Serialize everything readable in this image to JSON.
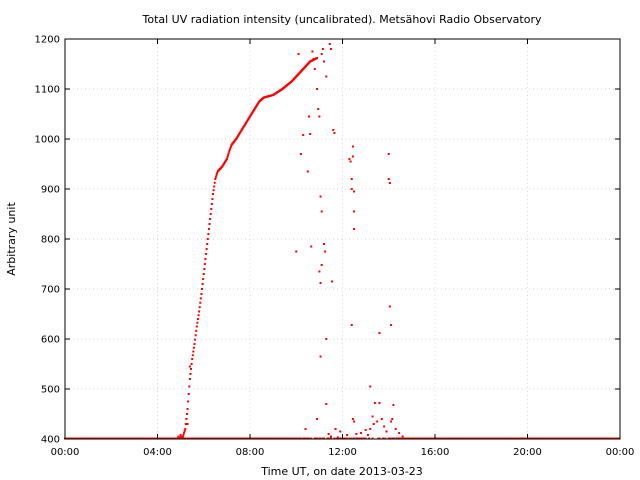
{
  "chart_data": {
    "type": "scatter",
    "title": "Total UV radiation intensity (uncalibrated). Metsähovi Radio Observatory",
    "xlabel": "Time UT, on date 2013-03-23",
    "ylabel": "Arbitrary unit",
    "xlim": [
      0,
      24
    ],
    "ylim": [
      400,
      1200
    ],
    "x_ticks": [
      0,
      4,
      8,
      12,
      16,
      20,
      24
    ],
    "x_tick_labels": [
      "00:00",
      "04:00",
      "08:00",
      "12:00",
      "16:00",
      "20:00",
      "00:00"
    ],
    "y_ticks": [
      400,
      500,
      600,
      700,
      800,
      900,
      1000,
      1100,
      1200
    ],
    "y_tick_labels": [
      "400",
      "500",
      "600",
      "700",
      "800",
      "900",
      "1000",
      "1100",
      "1200"
    ],
    "grid": true,
    "color": "#ff0000",
    "baseline": {
      "value": 401,
      "x_start": 0,
      "x_end": 24,
      "step": 0.05
    },
    "curve": [
      [
        4.9,
        402
      ],
      [
        5.1,
        405
      ],
      [
        5.2,
        420
      ],
      [
        5.3,
        460
      ],
      [
        5.4,
        520
      ],
      [
        5.5,
        560
      ],
      [
        5.6,
        590
      ],
      [
        5.7,
        625
      ],
      [
        5.8,
        655
      ],
      [
        5.9,
        690
      ],
      [
        6.0,
        730
      ],
      [
        6.1,
        770
      ],
      [
        6.2,
        810
      ],
      [
        6.3,
        850
      ],
      [
        6.4,
        890
      ],
      [
        6.5,
        920
      ],
      [
        6.6,
        935
      ],
      [
        6.8,
        945
      ],
      [
        7.0,
        960
      ],
      [
        7.1,
        975
      ],
      [
        7.2,
        988
      ],
      [
        7.4,
        1000
      ],
      [
        7.6,
        1015
      ],
      [
        7.8,
        1030
      ],
      [
        8.0,
        1045
      ],
      [
        8.2,
        1060
      ],
      [
        8.4,
        1075
      ],
      [
        8.6,
        1083
      ],
      [
        9.0,
        1088
      ],
      [
        9.4,
        1100
      ],
      [
        9.8,
        1115
      ],
      [
        10.0,
        1125
      ],
      [
        10.3,
        1140
      ],
      [
        10.6,
        1155
      ],
      [
        10.9,
        1162
      ]
    ],
    "scatter": [
      [
        4.9,
        405
      ],
      [
        5.0,
        408
      ],
      [
        5.05,
        402
      ],
      [
        5.3,
        430
      ],
      [
        5.4,
        545
      ],
      [
        10.1,
        1170
      ],
      [
        10.2,
        970
      ],
      [
        10.3,
        1008
      ],
      [
        10.5,
        935
      ],
      [
        10.55,
        1045
      ],
      [
        10.6,
        1010
      ],
      [
        10.65,
        785
      ],
      [
        10.7,
        1175
      ],
      [
        10.75,
        1160
      ],
      [
        10.8,
        1140
      ],
      [
        10.9,
        1100
      ],
      [
        10.95,
        1060
      ],
      [
        11.0,
        1045
      ],
      [
        11.05,
        885
      ],
      [
        11.1,
        855
      ],
      [
        11.0,
        735
      ],
      [
        11.05,
        712
      ],
      [
        11.1,
        748
      ],
      [
        11.2,
        790
      ],
      [
        11.25,
        775
      ],
      [
        11.3,
        600
      ],
      [
        11.3,
        470
      ],
      [
        10.9,
        440
      ],
      [
        11.05,
        565
      ],
      [
        11.1,
        1170
      ],
      [
        11.15,
        1180
      ],
      [
        11.2,
        1155
      ],
      [
        11.3,
        1125
      ],
      [
        11.45,
        1190
      ],
      [
        11.5,
        1180
      ],
      [
        11.6,
        1018
      ],
      [
        11.65,
        1012
      ],
      [
        11.55,
        715
      ],
      [
        10.0,
        775
      ],
      [
        12.3,
        960
      ],
      [
        12.35,
        955
      ],
      [
        12.45,
        985
      ],
      [
        12.45,
        965
      ],
      [
        12.4,
        920
      ],
      [
        12.4,
        900
      ],
      [
        12.5,
        895
      ],
      [
        12.5,
        855
      ],
      [
        12.5,
        820
      ],
      [
        12.4,
        628
      ],
      [
        12.5,
        435
      ],
      [
        12.45,
        440
      ],
      [
        13.2,
        505
      ],
      [
        13.3,
        445
      ],
      [
        13.4,
        472
      ],
      [
        13.6,
        472
      ],
      [
        13.6,
        612
      ],
      [
        14.0,
        970
      ],
      [
        14.0,
        920
      ],
      [
        14.05,
        912
      ],
      [
        14.05,
        665
      ],
      [
        14.1,
        628
      ],
      [
        14.2,
        468
      ],
      [
        14.1,
        435
      ],
      [
        14.15,
        440
      ],
      [
        10.4,
        420
      ],
      [
        11.4,
        410
      ],
      [
        11.5,
        405
      ],
      [
        11.7,
        420
      ],
      [
        11.9,
        415
      ],
      [
        12.6,
        410
      ],
      [
        12.8,
        412
      ],
      [
        13.0,
        418
      ],
      [
        13.1,
        408
      ],
      [
        13.2,
        420
      ],
      [
        13.35,
        430
      ],
      [
        13.5,
        435
      ],
      [
        13.7,
        440
      ],
      [
        13.8,
        425
      ],
      [
        13.9,
        415
      ],
      [
        14.3,
        420
      ],
      [
        14.45,
        412
      ],
      [
        14.6,
        405
      ],
      [
        12.2,
        408
      ],
      [
        11.8,
        403
      ]
    ]
  }
}
